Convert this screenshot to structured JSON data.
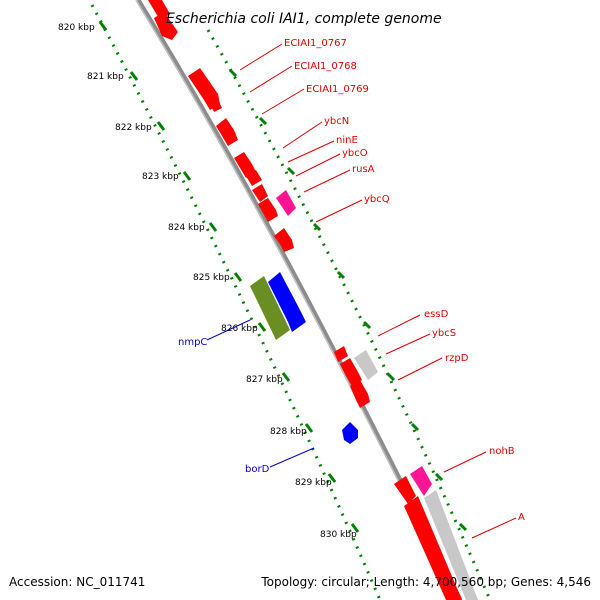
{
  "title": "Escherichia coli IAI1, complete genome",
  "footer": {
    "accession": "Accession: NC_011741",
    "topology": "Topology: circular; Length: 4,700,560 bp; Genes: 4,546"
  },
  "colors": {
    "backbone": "#8c8c8c",
    "tick_ring": "#008000",
    "gene_red": "#ff0000",
    "gene_blue": "#0000ff",
    "gene_green": "#6b8e23",
    "gene_pink": "#ff1493",
    "gene_gray": "#c8c8c8"
  },
  "ticks": [
    {
      "label": "820 kbp"
    },
    {
      "label": "821 kbp"
    },
    {
      "label": "822 kbp"
    },
    {
      "label": "823 kbp"
    },
    {
      "label": "824 kbp"
    },
    {
      "label": "825 kbp"
    },
    {
      "label": "826 kbp"
    },
    {
      "label": "827 kbp"
    },
    {
      "label": "828 kbp"
    },
    {
      "label": "829 kbp"
    },
    {
      "label": "830 kbp"
    }
  ],
  "gene_labels": [
    {
      "text": "ECIAI1_0767",
      "color": "red"
    },
    {
      "text": "ECIAI1_0768",
      "color": "red"
    },
    {
      "text": "ECIAI1_0769",
      "color": "red"
    },
    {
      "text": "ybcN",
      "color": "red"
    },
    {
      "text": "ninE",
      "color": "red"
    },
    {
      "text": "ybcO",
      "color": "red"
    },
    {
      "text": "rusA",
      "color": "red"
    },
    {
      "text": "ybcQ",
      "color": "red"
    },
    {
      "text": "essD",
      "color": "red"
    },
    {
      "text": "ybcS",
      "color": "red"
    },
    {
      "text": "rzpD",
      "color": "red"
    },
    {
      "text": "nohB",
      "color": "red"
    },
    {
      "text": "A",
      "color": "red"
    },
    {
      "text": "nmpC",
      "color": "blue"
    },
    {
      "text": "borD",
      "color": "blue"
    }
  ]
}
